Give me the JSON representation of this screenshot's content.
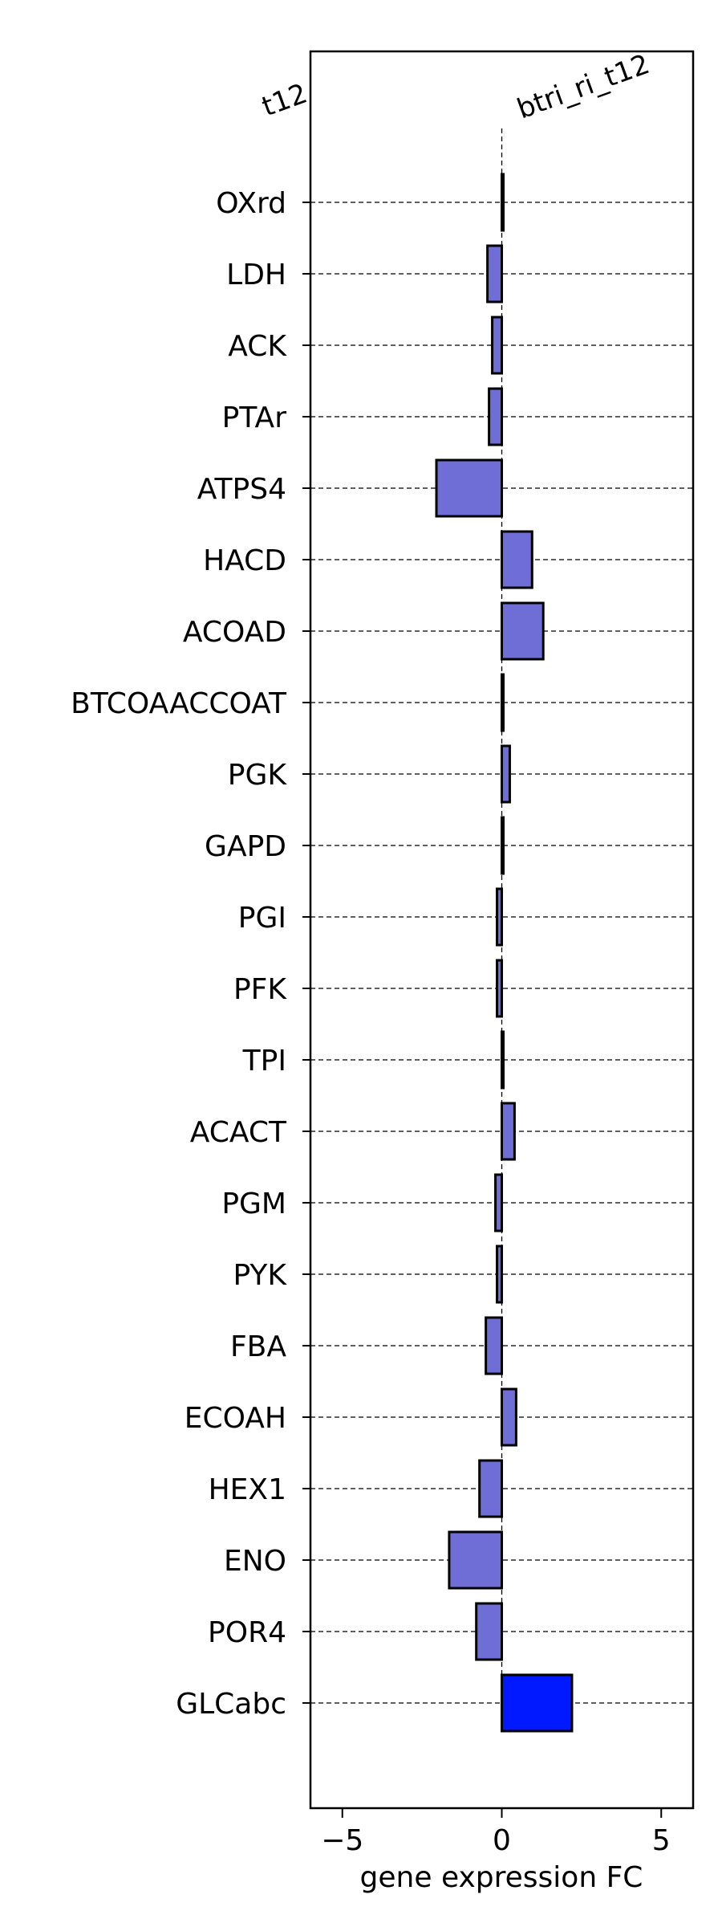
{
  "chart_data": {
    "type": "bar",
    "orientation": "horizontal",
    "categories": [
      "OXrd",
      "LDH",
      "ACK",
      "PTAr",
      "ATPS4",
      "HACD",
      "ACOAD",
      "BTCOAACCOAT",
      "PGK",
      "GAPD",
      "PGI",
      "PFK",
      "TPI",
      "ACACT",
      "PGM",
      "PYK",
      "FBA",
      "ECOAH",
      "HEX1",
      "ENO",
      "POR4",
      "GLCabc"
    ],
    "values": [
      0.05,
      -0.45,
      -0.3,
      -0.4,
      -2.05,
      0.95,
      1.3,
      0.05,
      0.25,
      0.02,
      -0.15,
      -0.15,
      0.05,
      0.4,
      -0.2,
      -0.15,
      -0.5,
      0.45,
      -0.7,
      -1.65,
      -0.8,
      2.2
    ],
    "highlight": "GLCabc",
    "colors": {
      "default": "#6e6ed6",
      "highlight": "#0019ff"
    },
    "xlabel": "gene expression FC",
    "xlim": [
      -6,
      6
    ],
    "xticks": [
      -5,
      0,
      5
    ],
    "xtick_labels": [
      "−5",
      "0",
      "5"
    ],
    "grid": "horizontal dashed",
    "left_label": "t12",
    "right_label": "btri_ri_t12"
  }
}
